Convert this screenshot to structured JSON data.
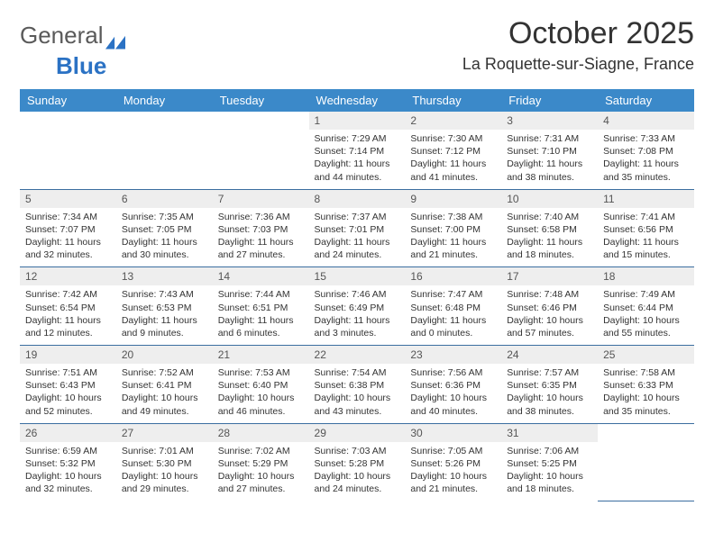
{
  "brand": {
    "part1": "General",
    "part2": "Blue"
  },
  "title": "October 2025",
  "location": "La Roquette-sur-Siagne, France",
  "colors": {
    "header_bg": "#3b89c9",
    "header_text": "#ffffff",
    "daynum_bg": "#eeeeee",
    "rule": "#3b6ea0",
    "brand_blue": "#2b72c4",
    "text": "#333333",
    "background": "#ffffff"
  },
  "dow": [
    "Sunday",
    "Monday",
    "Tuesday",
    "Wednesday",
    "Thursday",
    "Friday",
    "Saturday"
  ],
  "layout": {
    "first_weekday_index": 3,
    "days_in_month": 31,
    "cols": 7,
    "rows": 5
  },
  "days": [
    {
      "n": 1,
      "sr": "7:29 AM",
      "ss": "7:14 PM",
      "dl": "11 hours and 44 minutes."
    },
    {
      "n": 2,
      "sr": "7:30 AM",
      "ss": "7:12 PM",
      "dl": "11 hours and 41 minutes."
    },
    {
      "n": 3,
      "sr": "7:31 AM",
      "ss": "7:10 PM",
      "dl": "11 hours and 38 minutes."
    },
    {
      "n": 4,
      "sr": "7:33 AM",
      "ss": "7:08 PM",
      "dl": "11 hours and 35 minutes."
    },
    {
      "n": 5,
      "sr": "7:34 AM",
      "ss": "7:07 PM",
      "dl": "11 hours and 32 minutes."
    },
    {
      "n": 6,
      "sr": "7:35 AM",
      "ss": "7:05 PM",
      "dl": "11 hours and 30 minutes."
    },
    {
      "n": 7,
      "sr": "7:36 AM",
      "ss": "7:03 PM",
      "dl": "11 hours and 27 minutes."
    },
    {
      "n": 8,
      "sr": "7:37 AM",
      "ss": "7:01 PM",
      "dl": "11 hours and 24 minutes."
    },
    {
      "n": 9,
      "sr": "7:38 AM",
      "ss": "7:00 PM",
      "dl": "11 hours and 21 minutes."
    },
    {
      "n": 10,
      "sr": "7:40 AM",
      "ss": "6:58 PM",
      "dl": "11 hours and 18 minutes."
    },
    {
      "n": 11,
      "sr": "7:41 AM",
      "ss": "6:56 PM",
      "dl": "11 hours and 15 minutes."
    },
    {
      "n": 12,
      "sr": "7:42 AM",
      "ss": "6:54 PM",
      "dl": "11 hours and 12 minutes."
    },
    {
      "n": 13,
      "sr": "7:43 AM",
      "ss": "6:53 PM",
      "dl": "11 hours and 9 minutes."
    },
    {
      "n": 14,
      "sr": "7:44 AM",
      "ss": "6:51 PM",
      "dl": "11 hours and 6 minutes."
    },
    {
      "n": 15,
      "sr": "7:46 AM",
      "ss": "6:49 PM",
      "dl": "11 hours and 3 minutes."
    },
    {
      "n": 16,
      "sr": "7:47 AM",
      "ss": "6:48 PM",
      "dl": "11 hours and 0 minutes."
    },
    {
      "n": 17,
      "sr": "7:48 AM",
      "ss": "6:46 PM",
      "dl": "10 hours and 57 minutes."
    },
    {
      "n": 18,
      "sr": "7:49 AM",
      "ss": "6:44 PM",
      "dl": "10 hours and 55 minutes."
    },
    {
      "n": 19,
      "sr": "7:51 AM",
      "ss": "6:43 PM",
      "dl": "10 hours and 52 minutes."
    },
    {
      "n": 20,
      "sr": "7:52 AM",
      "ss": "6:41 PM",
      "dl": "10 hours and 49 minutes."
    },
    {
      "n": 21,
      "sr": "7:53 AM",
      "ss": "6:40 PM",
      "dl": "10 hours and 46 minutes."
    },
    {
      "n": 22,
      "sr": "7:54 AM",
      "ss": "6:38 PM",
      "dl": "10 hours and 43 minutes."
    },
    {
      "n": 23,
      "sr": "7:56 AM",
      "ss": "6:36 PM",
      "dl": "10 hours and 40 minutes."
    },
    {
      "n": 24,
      "sr": "7:57 AM",
      "ss": "6:35 PM",
      "dl": "10 hours and 38 minutes."
    },
    {
      "n": 25,
      "sr": "7:58 AM",
      "ss": "6:33 PM",
      "dl": "10 hours and 35 minutes."
    },
    {
      "n": 26,
      "sr": "6:59 AM",
      "ss": "5:32 PM",
      "dl": "10 hours and 32 minutes."
    },
    {
      "n": 27,
      "sr": "7:01 AM",
      "ss": "5:30 PM",
      "dl": "10 hours and 29 minutes."
    },
    {
      "n": 28,
      "sr": "7:02 AM",
      "ss": "5:29 PM",
      "dl": "10 hours and 27 minutes."
    },
    {
      "n": 29,
      "sr": "7:03 AM",
      "ss": "5:28 PM",
      "dl": "10 hours and 24 minutes."
    },
    {
      "n": 30,
      "sr": "7:05 AM",
      "ss": "5:26 PM",
      "dl": "10 hours and 21 minutes."
    },
    {
      "n": 31,
      "sr": "7:06 AM",
      "ss": "5:25 PM",
      "dl": "10 hours and 18 minutes."
    }
  ],
  "labels": {
    "sunrise": "Sunrise: ",
    "sunset": "Sunset: ",
    "daylight": "Daylight: "
  }
}
